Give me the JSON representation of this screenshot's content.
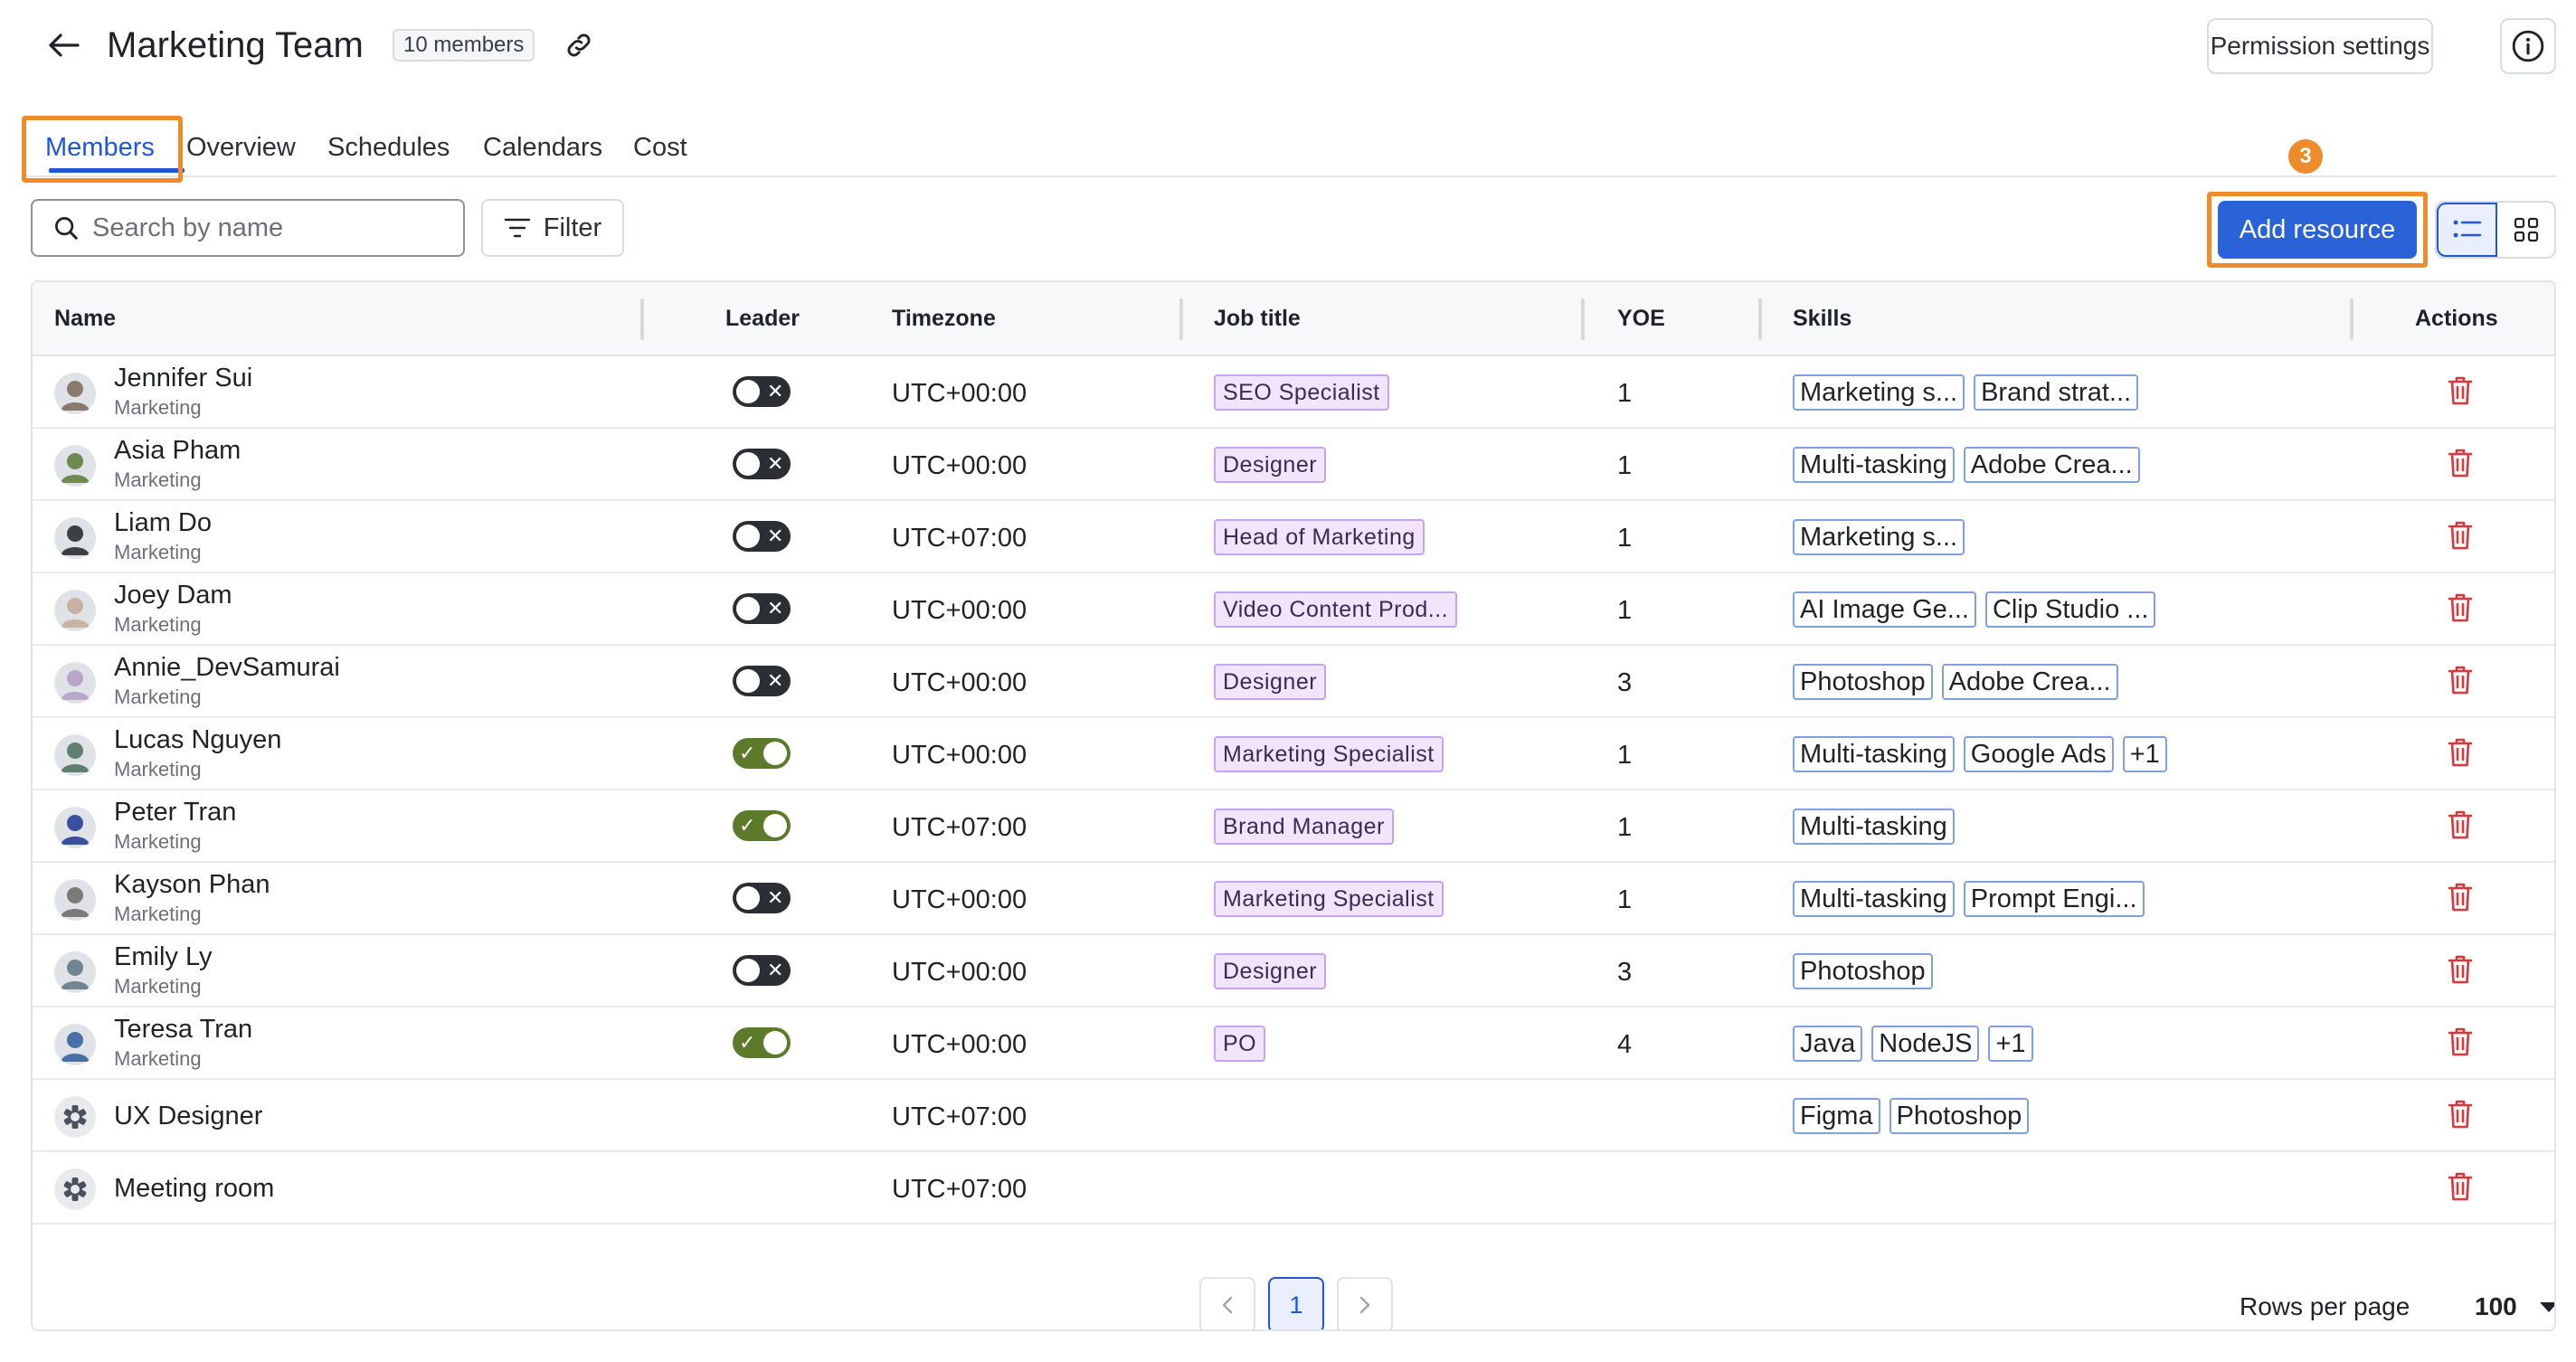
{
  "header": {
    "title": "Marketing Team",
    "member_count": "10 members",
    "permission_button": "Permission settings"
  },
  "tabs": [
    {
      "label": "Members",
      "active": true
    },
    {
      "label": "Overview",
      "active": false
    },
    {
      "label": "Schedules",
      "active": false
    },
    {
      "label": "Calendars",
      "active": false
    },
    {
      "label": "Cost",
      "active": false
    }
  ],
  "toolbar": {
    "search_placeholder": "Search by name",
    "filter_label": "Filter",
    "add_resource_label": "Add resource",
    "step_number": "3"
  },
  "table": {
    "columns": [
      "Name",
      "Leader",
      "Timezone",
      "Job title",
      "YOE",
      "Skills",
      "Actions"
    ],
    "rows": [
      {
        "name": "Jennifer Sui",
        "dept": "Marketing",
        "leader": false,
        "timezone": "UTC+00:00",
        "job": "SEO Specialist",
        "yoe": "1",
        "skills": [
          "Marketing s...",
          "Brand strat..."
        ],
        "avatar": "#8a7a6e"
      },
      {
        "name": "Asia Pham",
        "dept": "Marketing",
        "leader": false,
        "timezone": "UTC+00:00",
        "job": "Designer",
        "yoe": "1",
        "skills": [
          "Multi-tasking",
          "Adobe Crea..."
        ],
        "avatar": "#6e8a4e"
      },
      {
        "name": "Liam Do",
        "dept": "Marketing",
        "leader": false,
        "timezone": "UTC+07:00",
        "job": "Head of Marketing",
        "yoe": "1",
        "skills": [
          "Marketing s..."
        ],
        "avatar": "#3c3f44"
      },
      {
        "name": "Joey Dam",
        "dept": "Marketing",
        "leader": false,
        "timezone": "UTC+00:00",
        "job": "Video Content Prod...",
        "yoe": "1",
        "skills": [
          "AI Image Ge...",
          "Clip Studio ..."
        ],
        "avatar": "#c9b2a3"
      },
      {
        "name": "Annie_DevSamurai",
        "dept": "Marketing",
        "leader": false,
        "timezone": "UTC+00:00",
        "job": "Designer",
        "yoe": "3",
        "skills": [
          "Photoshop",
          "Adobe Crea..."
        ],
        "avatar": "#b9a6c9"
      },
      {
        "name": "Lucas Nguyen",
        "dept": "Marketing",
        "leader": true,
        "timezone": "UTC+00:00",
        "job": "Marketing Specialist",
        "yoe": "1",
        "skills": [
          "Multi-tasking",
          "Google Ads",
          "+1"
        ],
        "avatar": "#5e7f6e"
      },
      {
        "name": "Peter Tran",
        "dept": "Marketing",
        "leader": true,
        "timezone": "UTC+07:00",
        "job": "Brand Manager",
        "yoe": "1",
        "skills": [
          "Multi-tasking"
        ],
        "avatar": "#3a4fa0"
      },
      {
        "name": "Kayson Phan",
        "dept": "Marketing",
        "leader": false,
        "timezone": "UTC+00:00",
        "job": "Marketing Specialist",
        "yoe": "1",
        "skills": [
          "Multi-tasking",
          "Prompt Engi..."
        ],
        "avatar": "#7a7a7a"
      },
      {
        "name": "Emily Ly",
        "dept": "Marketing",
        "leader": false,
        "timezone": "UTC+00:00",
        "job": "Designer",
        "yoe": "3",
        "skills": [
          "Photoshop"
        ],
        "avatar": "#6f8592"
      },
      {
        "name": "Teresa Tran",
        "dept": "Marketing",
        "leader": true,
        "timezone": "UTC+00:00",
        "job": "PO",
        "yoe": "4",
        "skills": [
          "Java",
          "NodeJS",
          "+1"
        ],
        "avatar": "#4a6fa8"
      },
      {
        "name": "UX Designer",
        "dept": "",
        "leader": null,
        "timezone": "UTC+07:00",
        "job": "",
        "yoe": "",
        "skills": [
          "Figma",
          "Photoshop"
        ],
        "avatar": "resource"
      },
      {
        "name": "Meeting room",
        "dept": "",
        "leader": null,
        "timezone": "UTC+07:00",
        "job": "",
        "yoe": "",
        "skills": [],
        "avatar": "resource"
      }
    ]
  },
  "pagination": {
    "current_page": "1",
    "rows_per_page_label": "Rows per page",
    "rows_per_page_value": "100"
  },
  "colors": {
    "accent": "#2156d9",
    "highlight": "#f08b2c",
    "toggle_on": "#5b7a2a",
    "toggle_off": "#2b2e33",
    "delete": "#d9383a"
  }
}
